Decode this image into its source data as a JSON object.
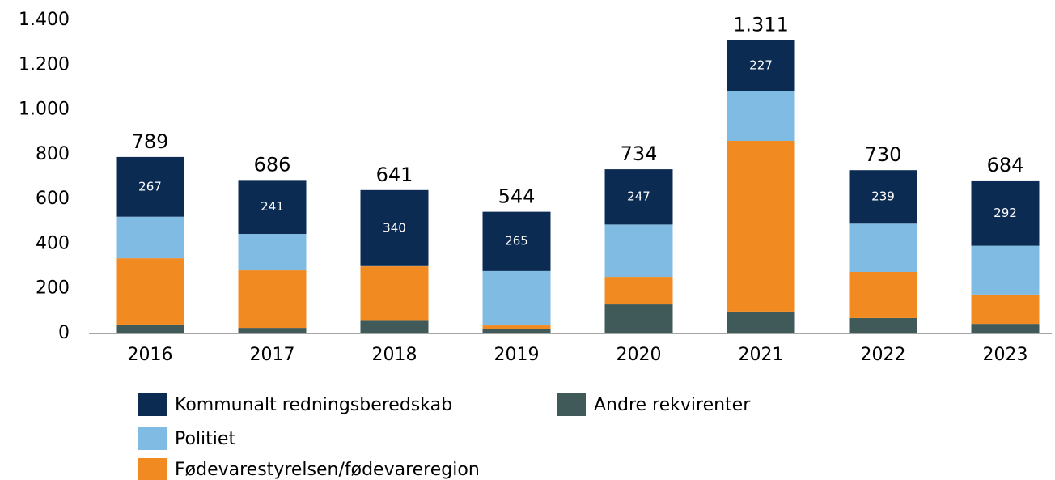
{
  "chart_data": {
    "type": "stacked_bar",
    "categories": [
      "2016",
      "2017",
      "2018",
      "2019",
      "2020",
      "2021",
      "2022",
      "2023"
    ],
    "series": [
      {
        "name": "Andre rekvirenter",
        "color": "#3f5a59",
        "values": [
          40,
          25,
          60,
          20,
          130,
          98,
          69,
          43
        ]
      },
      {
        "name": "Fødevarestyrelsen/fødevareregion",
        "color": "#f28a22",
        "values": [
          296,
          257,
          240,
          16,
          123,
          763,
          206,
          131
        ]
      },
      {
        "name": "Politiet",
        "color": "#80bbe3",
        "values": [
          186,
          163,
          1,
          243,
          234,
          223,
          216,
          218
        ]
      },
      {
        "name": "Kommunalt redningsberedskab",
        "color": "#0c2b52",
        "values": [
          267,
          241,
          340,
          265,
          247,
          227,
          239,
          292
        ],
        "labels": true
      }
    ],
    "totals": {
      "values": [
        789,
        686,
        641,
        544,
        734,
        1311,
        730,
        684
      ],
      "value_labels": [
        "789",
        "686",
        "641",
        "544",
        "734",
        "1.311",
        "730",
        "684"
      ]
    },
    "ylim": [
      0,
      1400
    ],
    "yticks": [
      0,
      200,
      400,
      600,
      800,
      {
        "value": 1000,
        "label": "1.000"
      },
      {
        "value": 1200,
        "label": "1.200"
      },
      {
        "value": 1400,
        "label": "1.400"
      }
    ]
  }
}
